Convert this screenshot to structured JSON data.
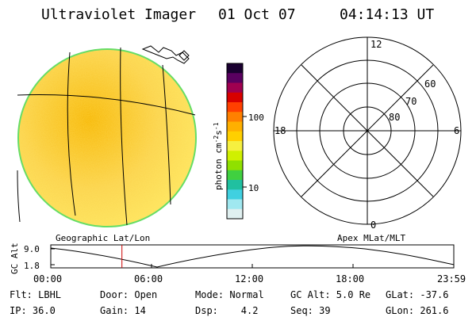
{
  "header": {
    "title": "Ultraviolet Imager",
    "date": "01 Oct 07",
    "time": "04:14:13 UT"
  },
  "colorbar": {
    "unit_label_main": "photon cm",
    "unit_label_sup1": "-2",
    "unit_label_mid": "s",
    "unit_label_sup2": "-1",
    "ticks": [
      "100",
      "10"
    ],
    "colors": [
      "#1a0030",
      "#5a0060",
      "#a00050",
      "#d80000",
      "#ff4000",
      "#ff8000",
      "#ffb000",
      "#ffd000",
      "#f6f040",
      "#d0f000",
      "#90e000",
      "#40d040",
      "#20c0a0",
      "#40d0e0",
      "#a0e8f0",
      "#e0f0f0"
    ]
  },
  "earth_image": {
    "fill_colors": [
      "#f7b500",
      "#fbd24a",
      "#ffe860"
    ],
    "edge_color": "#66dd66"
  },
  "polar_plot": {
    "mlt_labels": {
      "top": "12",
      "right": "6",
      "bottom": "0",
      "left": "18"
    },
    "lat_labels": [
      "60",
      "70",
      "80"
    ]
  },
  "altitude_plot": {
    "ylabel": "GC Alt",
    "yticks": [
      "9.0",
      "1.8"
    ],
    "left_title": "Geographic Lat/Lon",
    "right_title": "Apex MLat/MLT",
    "xticks": [
      "00:00",
      "06:00",
      "12:00",
      "18:00",
      "23:59"
    ],
    "marker_time_hours": 4.237,
    "marker_color": "#cc0000"
  },
  "footer": {
    "row1": [
      {
        "key": "Flt: LBHL"
      },
      {
        "key": "Door: Open"
      },
      {
        "key": "Mode: Normal"
      },
      {
        "key": "GC Alt: 5.0 Re"
      },
      {
        "key": "GLat: -37.6"
      }
    ],
    "row2": [
      {
        "key": "IP: 36.0"
      },
      {
        "key": "Gain: 14"
      },
      {
        "key": "Dsp:    4.2"
      },
      {
        "key": "Seq: 39"
      },
      {
        "key": "GLon: 261.6"
      }
    ]
  }
}
